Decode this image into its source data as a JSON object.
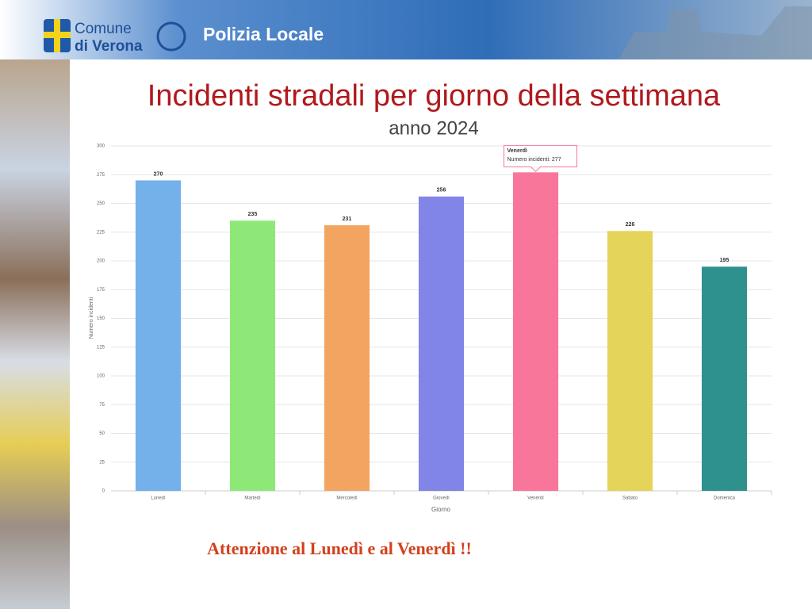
{
  "header": {
    "logo_line1": "Comune",
    "logo_line2": "di Verona",
    "department": "Polizia Locale"
  },
  "chart_data": {
    "type": "bar",
    "title": "Incidenti stradali per giorno della settimana",
    "subtitle": "anno 2024",
    "categories": [
      "Lunedì",
      "Martedì",
      "Mercoledì",
      "Giovedì",
      "Venerdì",
      "Sabato",
      "Domenica"
    ],
    "values": [
      270,
      235,
      231,
      256,
      277,
      226,
      195
    ],
    "colors": [
      "#74b0ea",
      "#8ee878",
      "#f4a461",
      "#8285e8",
      "#f7769a",
      "#e4d45a",
      "#2e918e"
    ],
    "ylim": [
      0,
      300
    ],
    "yticks": [
      0,
      25,
      50,
      75,
      100,
      125,
      150,
      175,
      200,
      225,
      250,
      275,
      300
    ],
    "x_label": "Giorno",
    "y_label": "Numero incidenti",
    "grid": true,
    "tooltip": {
      "title": "Venerdì",
      "text": "Numero incidenti: 277"
    }
  },
  "note": "Attenzione al Lunedì e al Venerdì !!"
}
